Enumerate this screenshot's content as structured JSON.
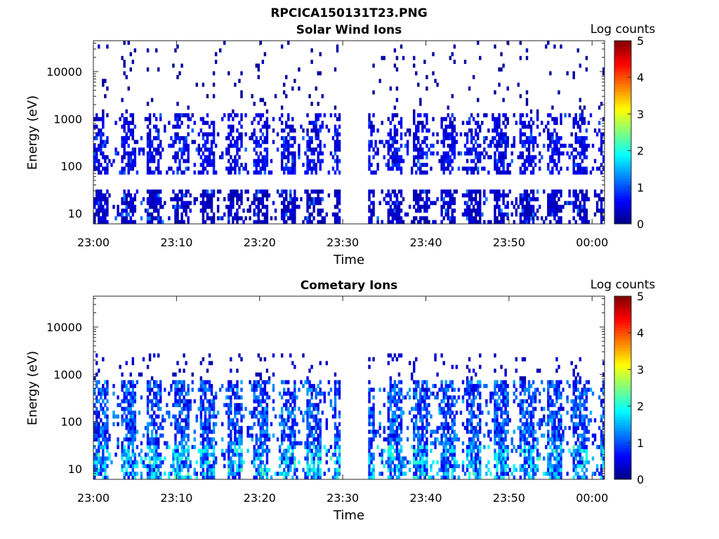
{
  "figure_title": "RPCICA150131T23.PNG",
  "chart_data": [
    {
      "type": "heatmap",
      "title": "Solar Wind Ions",
      "xlabel": "Time",
      "ylabel": "Energy (eV)",
      "x_tick_labels": [
        "23:00",
        "23:10",
        "23:20",
        "23:30",
        "23:40",
        "23:50",
        "00:00"
      ],
      "x_ticks_minutes": [
        0,
        10,
        20,
        30,
        40,
        50,
        60
      ],
      "xlim_minutes": [
        0,
        61.5
      ],
      "y_scale": "log",
      "y_tick_labels": [
        "10",
        "100",
        "1000",
        "10000"
      ],
      "y_ticks": [
        10,
        100,
        1000,
        10000
      ],
      "ylim": [
        6,
        45000
      ],
      "colorbar": {
        "label": "Log counts",
        "min": 0,
        "max": 5,
        "tick_labels": [
          "0",
          "1",
          "2",
          "3",
          "4",
          "5"
        ]
      },
      "data_gap_minutes": [
        29.5,
        33
      ],
      "sweep_period_minutes": 3.2,
      "noise_upper_cutoff_eV": 45000,
      "bands": [
        {
          "emin": 6,
          "emax": 35,
          "density": 0.72,
          "value_mean": 0.35,
          "value_peak": 1.3
        },
        {
          "emin": 70,
          "emax": 420,
          "density": 0.62,
          "value_mean": 0.55,
          "value_peak": 1.2
        },
        {
          "emin": 420,
          "emax": 1300,
          "density": 0.45,
          "value_mean": 0.45,
          "value_peak": 1.1
        },
        {
          "emin": 1300,
          "emax": 45000,
          "density": 0.06,
          "value_mean": 0.15,
          "value_peak": 0.3
        }
      ]
    },
    {
      "type": "heatmap",
      "title": "Cometary Ions",
      "xlabel": "Time",
      "ylabel": "Energy (eV)",
      "x_tick_labels": [
        "23:00",
        "23:10",
        "23:20",
        "23:30",
        "23:40",
        "23:50",
        "00:00"
      ],
      "x_ticks_minutes": [
        0,
        10,
        20,
        30,
        40,
        50,
        60
      ],
      "xlim_minutes": [
        0,
        61.5
      ],
      "y_scale": "log",
      "y_tick_labels": [
        "10",
        "100",
        "1000",
        "10000"
      ],
      "y_ticks": [
        10,
        100,
        1000,
        10000
      ],
      "ylim": [
        6,
        45000
      ],
      "colorbar": {
        "label": "Log counts",
        "min": 0,
        "max": 5,
        "tick_labels": [
          "0",
          "1",
          "2",
          "3",
          "4",
          "5"
        ]
      },
      "data_gap_minutes": [
        29.5,
        33
      ],
      "sweep_period_minutes": 3.2,
      "bands": [
        {
          "emin": 6,
          "emax": 30,
          "density": 0.8,
          "value_mean": 1.3,
          "value_peak": 2.4
        },
        {
          "emin": 30,
          "emax": 700,
          "density": 0.7,
          "value_mean": 0.9,
          "value_peak": 1.6
        },
        {
          "emin": 700,
          "emax": 3000,
          "density": 0.12,
          "value_mean": 0.3,
          "value_peak": 0.6
        }
      ]
    }
  ]
}
